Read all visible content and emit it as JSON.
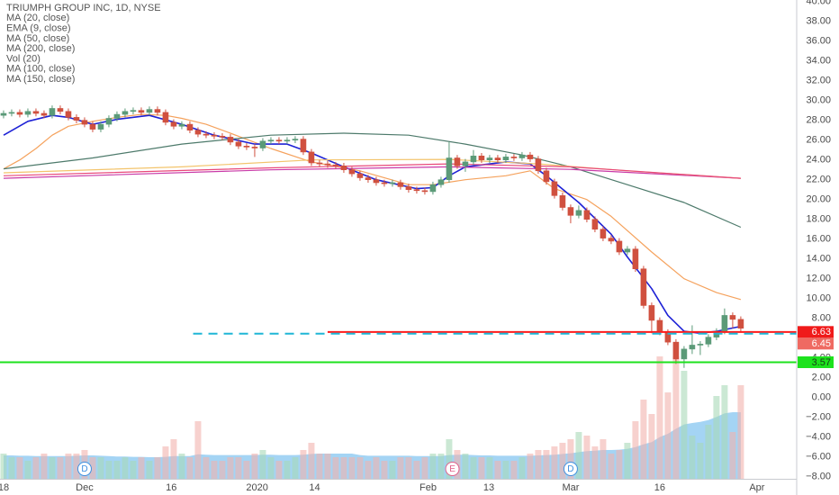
{
  "chart_data": {
    "type": "candlestick",
    "title": "TRIUMPH GROUP INC, 1D, NYSE",
    "legend_corner": "top-left",
    "grid": false,
    "up_color": "#5b9a78",
    "down_color": "#d0503f",
    "xlim": [
      -0.44,
      97.9
    ],
    "ylim": [
      -8.2,
      40.15
    ],
    "xticks": [
      {
        "value": 0,
        "label": "18"
      },
      {
        "value": 10,
        "label": "Dec"
      },
      {
        "value": 20.7,
        "label": "16"
      },
      {
        "value": 31.3,
        "label": "2020"
      },
      {
        "value": 38.4,
        "label": "14"
      },
      {
        "value": 52.4,
        "label": "Feb"
      },
      {
        "value": 59.9,
        "label": "13"
      },
      {
        "value": 70,
        "label": "Mar"
      },
      {
        "value": 81,
        "label": "16"
      },
      {
        "value": 93,
        "label": "Apr"
      }
    ],
    "yticks": [
      {
        "value": 40,
        "label": "40.00"
      },
      {
        "value": 38,
        "label": "38.00"
      },
      {
        "value": 36,
        "label": "36.00"
      },
      {
        "value": 34,
        "label": "34.00"
      },
      {
        "value": 32,
        "label": "32.00"
      },
      {
        "value": 30,
        "label": "30.00"
      },
      {
        "value": 28,
        "label": "28.00"
      },
      {
        "value": 26,
        "label": "26.00"
      },
      {
        "value": 24,
        "label": "24.00"
      },
      {
        "value": 22,
        "label": "22.00"
      },
      {
        "value": 20,
        "label": "20.00"
      },
      {
        "value": 18,
        "label": "18.00"
      },
      {
        "value": 16,
        "label": "16.00"
      },
      {
        "value": 14,
        "label": "14.00"
      },
      {
        "value": 12,
        "label": "12.00"
      },
      {
        "value": 10,
        "label": "10.00"
      },
      {
        "value": 8,
        "label": "8.00"
      },
      {
        "value": 6,
        "label": "6.00"
      },
      {
        "value": 4,
        "label": "4.00"
      },
      {
        "value": 2,
        "label": "2.00"
      },
      {
        "value": 0,
        "label": "0.00"
      },
      {
        "value": -2,
        "label": "−2.00"
      },
      {
        "value": -4,
        "label": "−4.00"
      },
      {
        "value": -6,
        "label": "−6.00"
      },
      {
        "value": -8,
        "label": "−8.00"
      }
    ],
    "open": [
      28.5,
      28.7,
      28.8,
      28.6,
      28.9,
      28.7,
      28.5,
      29.2,
      28.9,
      28.3,
      28.0,
      27.6,
      27.1,
      27.6,
      28.2,
      28.6,
      28.9,
      29.0,
      28.8,
      29.1,
      28.8,
      27.8,
      27.4,
      27.6,
      27.0,
      26.6,
      26.5,
      26.4,
      26.3,
      25.8,
      25.4,
      25.3,
      25.2,
      25.9,
      26.0,
      25.9,
      26.0,
      26.1,
      24.8,
      23.7,
      23.6,
      23.5,
      23.4,
      23.0,
      22.6,
      22.2,
      22.0,
      21.7,
      21.6,
      21.7,
      21.3,
      21.0,
      20.9,
      20.8,
      21.5,
      22.0,
      24.2,
      23.4,
      23.8,
      24.4,
      24.0,
      24.2,
      24.0,
      24.3,
      24.2,
      24.5,
      24.1,
      22.9,
      21.8,
      20.4,
      19.2,
      18.4,
      18.9,
      18.0,
      17.0,
      16.1,
      15.8,
      14.7,
      15.0,
      13.0,
      9.3,
      7.8,
      6.6,
      5.6,
      3.9,
      4.9,
      5.3,
      5.4,
      6.1,
      6.7,
      8.3,
      7.9
    ],
    "high": [
      29.0,
      29.1,
      29.1,
      29.2,
      29.2,
      29.0,
      29.5,
      29.5,
      29.2,
      28.6,
      28.3,
      27.9,
      27.9,
      28.5,
      28.9,
      29.2,
      29.3,
      29.3,
      29.4,
      29.4,
      29.1,
      28.1,
      27.9,
      27.9,
      27.3,
      26.9,
      26.8,
      26.7,
      26.6,
      26.1,
      25.7,
      25.6,
      26.2,
      26.3,
      26.3,
      26.3,
      26.4,
      26.4,
      25.1,
      24.0,
      23.9,
      23.8,
      23.7,
      23.3,
      22.9,
      22.5,
      22.3,
      22.0,
      22.0,
      22.0,
      21.6,
      21.3,
      21.2,
      21.8,
      22.3,
      25.8,
      24.5,
      24.1,
      25.0,
      24.7,
      24.5,
      24.5,
      24.6,
      24.6,
      24.8,
      24.8,
      24.4,
      23.2,
      22.1,
      20.7,
      19.5,
      19.4,
      19.2,
      18.3,
      17.3,
      16.4,
      16.1,
      15.3,
      15.3,
      13.3,
      9.6,
      8.1,
      6.9,
      5.9,
      5.2,
      7.3,
      5.7,
      6.4,
      7.0,
      9.0,
      8.6,
      8.2
    ],
    "low": [
      28.2,
      28.4,
      28.3,
      28.3,
      28.4,
      28.2,
      28.2,
      28.6,
      28.0,
      27.7,
      27.3,
      26.8,
      26.8,
      27.3,
      27.9,
      28.3,
      28.6,
      28.5,
      28.5,
      28.5,
      27.5,
      27.1,
      27.1,
      26.7,
      26.3,
      26.2,
      26.1,
      26.0,
      25.5,
      25.1,
      25.0,
      24.3,
      24.9,
      25.6,
      25.6,
      25.6,
      25.7,
      24.5,
      23.4,
      23.3,
      23.2,
      23.1,
      22.7,
      22.3,
      21.9,
      21.7,
      21.4,
      21.3,
      21.3,
      21.0,
      20.7,
      20.6,
      20.5,
      20.5,
      21.2,
      21.7,
      23.1,
      22.8,
      23.5,
      23.7,
      23.7,
      23.7,
      23.7,
      23.9,
      23.9,
      23.8,
      22.6,
      21.5,
      20.1,
      18.9,
      17.6,
      18.1,
      17.7,
      16.7,
      15.8,
      15.5,
      14.4,
      14.4,
      12.7,
      9.0,
      6.5,
      6.3,
      5.3,
      3.4,
      3.0,
      4.4,
      4.3,
      5.1,
      5.8,
      6.4,
      7.0,
      6.7
    ],
    "close": [
      28.7,
      28.8,
      28.6,
      28.9,
      28.7,
      28.5,
      29.2,
      28.9,
      28.3,
      28.0,
      27.6,
      27.1,
      27.6,
      28.2,
      28.6,
      28.9,
      29.0,
      28.8,
      29.1,
      28.8,
      27.8,
      27.4,
      27.6,
      27.0,
      26.6,
      26.5,
      26.4,
      26.3,
      25.8,
      25.4,
      25.3,
      25.2,
      25.9,
      26.0,
      25.9,
      26.0,
      26.1,
      24.8,
      23.7,
      23.6,
      23.5,
      23.4,
      23.0,
      22.6,
      22.2,
      22.0,
      21.7,
      21.6,
      21.7,
      21.3,
      21.0,
      20.9,
      20.8,
      21.5,
      22.0,
      24.2,
      23.4,
      23.8,
      24.4,
      24.0,
      24.2,
      24.0,
      24.3,
      24.2,
      24.5,
      24.1,
      22.9,
      21.8,
      20.4,
      19.2,
      18.4,
      18.9,
      18.0,
      17.0,
      16.1,
      15.8,
      14.7,
      15.0,
      13.0,
      9.3,
      7.8,
      6.6,
      5.6,
      3.9,
      4.9,
      5.3,
      5.4,
      6.1,
      6.7,
      8.3,
      7.9,
      7.0
    ],
    "series": [
      {
        "name": "MA (20, close)",
        "kind": "line",
        "color": "#f5a25d",
        "x": [
          0,
          2,
          4,
          6,
          8,
          11,
          14,
          17,
          20,
          22,
          25,
          28,
          33,
          38,
          44,
          50,
          53,
          57,
          62,
          65,
          68,
          72,
          75,
          80,
          84,
          88,
          91
        ],
        "values": [
          23.1,
          24.0,
          25.15,
          26.5,
          27.4,
          27.9,
          28.3,
          28.6,
          28.5,
          28.2,
          27.6,
          26.7,
          25.15,
          23.8,
          22.9,
          21.5,
          21.5,
          22.0,
          22.4,
          22.9,
          21.1,
          20.0,
          18.3,
          14.7,
          12.0,
          10.6,
          9.9
        ]
      },
      {
        "name": "EMA (9, close)",
        "kind": "line",
        "color": "#1e22d6",
        "x": [
          0,
          3,
          6,
          8,
          11,
          14,
          18,
          22,
          26,
          31,
          35,
          38,
          42,
          46,
          51,
          53,
          55,
          57,
          62,
          65,
          67,
          71,
          75,
          77,
          80,
          82,
          84,
          86,
          88,
          91
        ],
        "values": [
          26.5,
          27.9,
          28.5,
          28.3,
          27.6,
          28.1,
          28.5,
          27.6,
          26.5,
          25.6,
          25.6,
          24.7,
          23.3,
          22.0,
          21.1,
          21.2,
          22.4,
          23.3,
          23.8,
          23.6,
          22.4,
          19.7,
          16.5,
          14.2,
          11.0,
          8.3,
          6.7,
          6.5,
          6.7,
          7.2
        ]
      },
      {
        "name": "MA (50, close)",
        "kind": "line",
        "color": "#4d7a6b",
        "x": [
          0,
          11,
          22,
          33,
          42,
          50,
          57,
          64,
          70,
          77,
          84,
          91
        ],
        "values": [
          23.1,
          24.2,
          25.6,
          26.5,
          26.7,
          26.5,
          25.6,
          24.5,
          23.3,
          21.5,
          19.7,
          17.2
        ]
      },
      {
        "name": "MA (200, close)",
        "kind": "line",
        "color": "#c93aa8",
        "x": [
          0,
          33,
          55,
          70,
          91
        ],
        "values": [
          22.15,
          23.0,
          23.3,
          23.05,
          22.15
        ]
      },
      {
        "name": "Vol (20)",
        "kind": "volume",
        "color": "#86c6f0",
        "up_color": "#a9d8b8",
        "down_color": "#f1b3ad",
        "values": [
          0.7,
          0.6,
          0.6,
          0.5,
          0.6,
          0.7,
          0.6,
          0.6,
          0.7,
          0.7,
          0.8,
          0.6,
          0.6,
          0.5,
          0.5,
          0.6,
          0.5,
          0.6,
          0.5,
          0.6,
          0.9,
          1.1,
          0.7,
          0.6,
          1.6,
          0.6,
          0.5,
          0.5,
          0.6,
          0.6,
          0.5,
          0.7,
          0.8,
          0.6,
          0.5,
          0.5,
          0.6,
          0.8,
          1.0,
          0.7,
          0.7,
          0.6,
          0.6,
          0.6,
          0.6,
          0.5,
          0.6,
          0.5,
          0.5,
          0.6,
          0.6,
          0.5,
          0.6,
          0.7,
          0.7,
          1.1,
          0.8,
          0.7,
          0.6,
          0.6,
          0.6,
          0.5,
          0.5,
          0.5,
          0.6,
          0.7,
          0.8,
          0.8,
          0.9,
          1.0,
          1.1,
          1.3,
          1.2,
          0.9,
          1.1,
          0.7,
          0.8,
          1.0,
          1.6,
          2.2,
          1.8,
          3.4,
          2.4,
          3.4,
          3.0,
          1.2,
          1.0,
          1.5,
          2.3,
          2.6,
          1.3,
          2.6
        ],
        "ma": [
          0.65,
          0.65,
          0.64,
          0.64,
          0.63,
          0.63,
          0.63,
          0.63,
          0.63,
          0.64,
          0.65,
          0.65,
          0.64,
          0.63,
          0.62,
          0.62,
          0.61,
          0.61,
          0.6,
          0.6,
          0.61,
          0.63,
          0.63,
          0.63,
          0.68,
          0.67,
          0.66,
          0.66,
          0.66,
          0.66,
          0.66,
          0.66,
          0.67,
          0.67,
          0.66,
          0.66,
          0.66,
          0.67,
          0.69,
          0.7,
          0.7,
          0.7,
          0.7,
          0.7,
          0.66,
          0.64,
          0.64,
          0.64,
          0.64,
          0.64,
          0.64,
          0.63,
          0.63,
          0.63,
          0.63,
          0.66,
          0.67,
          0.67,
          0.66,
          0.65,
          0.65,
          0.64,
          0.64,
          0.64,
          0.64,
          0.64,
          0.65,
          0.66,
          0.67,
          0.69,
          0.71,
          0.74,
          0.77,
          0.78,
          0.8,
          0.8,
          0.81,
          0.83,
          0.88,
          0.96,
          1.02,
          1.16,
          1.25,
          1.39,
          1.51,
          1.55,
          1.58,
          1.63,
          1.72,
          1.82,
          1.85,
          1.85
        ]
      },
      {
        "name": "MA (100, close)",
        "kind": "line",
        "color": "#f3c46c",
        "x": [
          0,
          22,
          38,
          55,
          66,
          77,
          91
        ],
        "values": [
          22.7,
          23.3,
          24.0,
          24.05,
          23.6,
          22.9,
          22.15
        ]
      },
      {
        "name": "MA (150, close)",
        "kind": "line",
        "color": "#e8497a",
        "x": [
          0,
          33,
          55,
          70,
          91
        ],
        "values": [
          22.4,
          23.2,
          23.6,
          23.3,
          22.15
        ]
      }
    ],
    "price_lines": [
      {
        "value": 6.63,
        "color": "#ff1a1a",
        "tag_color": "#f01a1a",
        "text_color": "#ffffff",
        "x_start": 40,
        "style": "solid"
      },
      {
        "value": 6.45,
        "color": "#1fb6d6",
        "tag_color": "#ef6a62",
        "text_color": "#ffffff",
        "x_start": 23.4,
        "style": "dashed"
      },
      {
        "value": 3.57,
        "color": "#1de21d",
        "tag_color": "#1de21d",
        "text_color": "#1a3a1a",
        "style": "solid"
      }
    ],
    "events": [
      {
        "x": 10,
        "label": "D",
        "color": "#3d8fe0"
      },
      {
        "x": 55.4,
        "label": "E",
        "color": "#e0608a"
      },
      {
        "x": 70,
        "label": "D",
        "color": "#3d8fe0"
      }
    ]
  }
}
